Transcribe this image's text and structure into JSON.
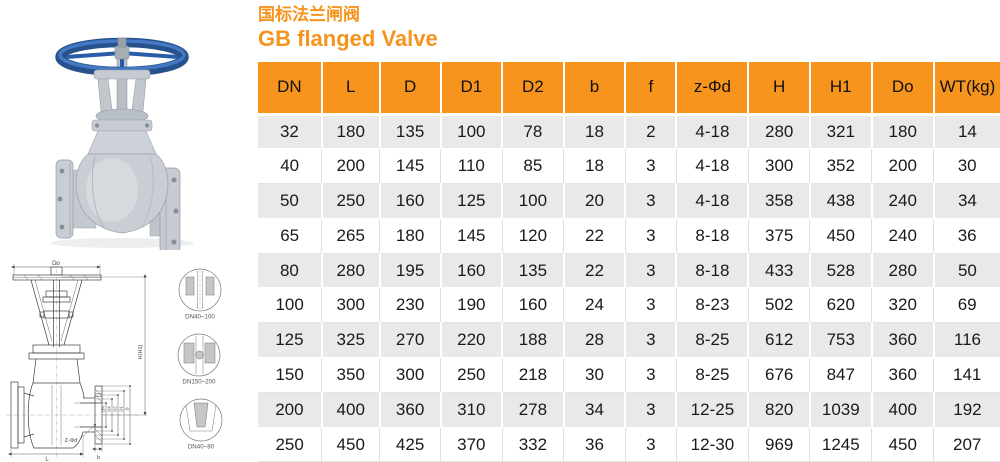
{
  "title": {
    "cn": "国标法兰闸阀",
    "en": "GB flanged Valve"
  },
  "colors": {
    "accent": "#F6941D",
    "row_alt": "#E9E9E9",
    "handwheel_blue": "#2A5CA8",
    "metal_gray": "#C9CED4",
    "drawing_line": "#3F3F3F"
  },
  "table": {
    "headers": [
      "DN",
      "L",
      "D",
      "D1",
      "D2",
      "b",
      "f",
      "z-Φd",
      "H",
      "H1",
      "Do",
      "WT(kg)"
    ],
    "rows": [
      [
        "32",
        "180",
        "135",
        "100",
        "78",
        "18",
        "2",
        "4-18",
        "280",
        "321",
        "180",
        "14"
      ],
      [
        "40",
        "200",
        "145",
        "110",
        "85",
        "18",
        "3",
        "4-18",
        "300",
        "352",
        "200",
        "30"
      ],
      [
        "50",
        "250",
        "160",
        "125",
        "100",
        "20",
        "3",
        "4-18",
        "358",
        "438",
        "240",
        "34"
      ],
      [
        "65",
        "265",
        "180",
        "145",
        "120",
        "22",
        "3",
        "8-18",
        "375",
        "450",
        "240",
        "36"
      ],
      [
        "80",
        "280",
        "195",
        "160",
        "135",
        "22",
        "3",
        "8-18",
        "433",
        "528",
        "280",
        "50"
      ],
      [
        "100",
        "300",
        "230",
        "190",
        "160",
        "24",
        "3",
        "8-23",
        "502",
        "620",
        "320",
        "69"
      ],
      [
        "125",
        "325",
        "270",
        "220",
        "188",
        "28",
        "3",
        "8-25",
        "612",
        "753",
        "360",
        "116"
      ],
      [
        "150",
        "350",
        "300",
        "250",
        "218",
        "30",
        "3",
        "8-25",
        "676",
        "847",
        "360",
        "141"
      ],
      [
        "200",
        "400",
        "360",
        "310",
        "278",
        "34",
        "3",
        "12-25",
        "820",
        "1039",
        "400",
        "192"
      ],
      [
        "250",
        "450",
        "425",
        "370",
        "332",
        "36",
        "3",
        "12-30",
        "969",
        "1245",
        "450",
        "207"
      ]
    ]
  },
  "drawing": {
    "dims": {
      "do": "Do",
      "h": "H(H1)",
      "l": "L",
      "b": "b",
      "z": "Z-Φd",
      "dn": "DN",
      "d4": "D4",
      "d2": "D2",
      "d1": "D1",
      "d": "D"
    },
    "details": [
      {
        "label": "DN40~100"
      },
      {
        "label": "DN150~200"
      },
      {
        "label": "DN40~80"
      }
    ]
  }
}
